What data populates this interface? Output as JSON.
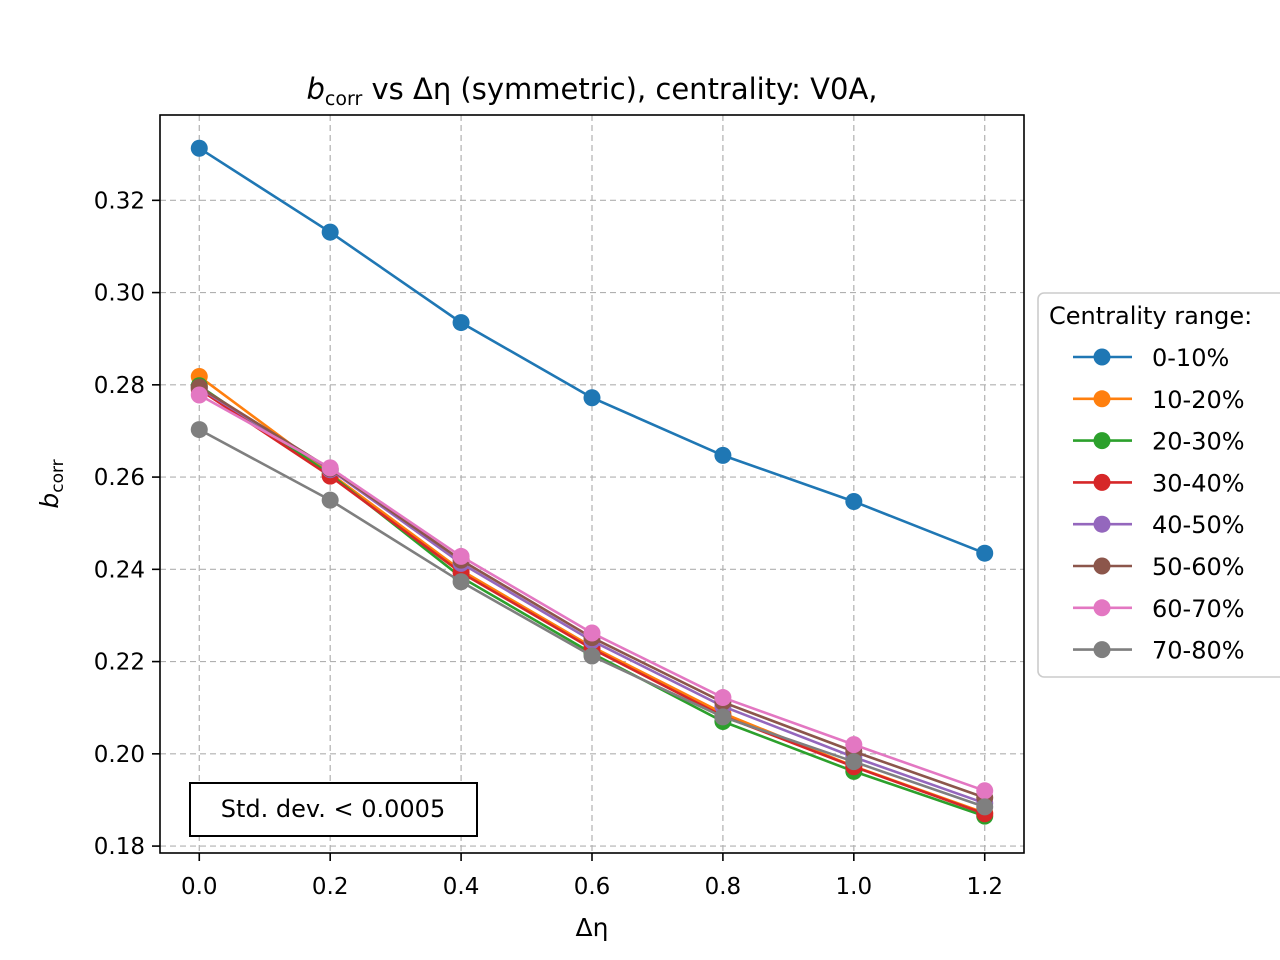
{
  "chart_data": {
    "type": "line",
    "title": {
      "symbol": "b",
      "subscript": "corr",
      "rest": " vs Δη (symmetric), centrality: V0A,"
    },
    "xlabel": "Δη",
    "ylabel": {
      "symbol": "b",
      "subscript": "corr"
    },
    "x": [
      0.0,
      0.2,
      0.4,
      0.6,
      0.8,
      1.0,
      1.2
    ],
    "xlim": [
      -0.06,
      1.26
    ],
    "ylim": [
      0.1785,
      0.3385
    ],
    "xticks": [
      "0.0",
      "0.2",
      "0.4",
      "0.6",
      "0.8",
      "1.0",
      "1.2"
    ],
    "yticks": [
      "0.18",
      "0.20",
      "0.22",
      "0.24",
      "0.26",
      "0.28",
      "0.30",
      "0.32"
    ],
    "grid": true,
    "legend": {
      "title": "Centrality range:",
      "position": "outside-right"
    },
    "annotation": "Std. dev. < 0.0005",
    "series": [
      {
        "name": "0-10%",
        "color": "#1f77b4",
        "values": [
          0.3313,
          0.3131,
          0.2935,
          0.2772,
          0.2647,
          0.2547,
          0.2435
        ]
      },
      {
        "name": "10-20%",
        "color": "#ff7f0e",
        "values": [
          0.2818,
          0.2608,
          0.2398,
          0.2232,
          0.2088,
          0.1973,
          0.1872
        ]
      },
      {
        "name": "20-30%",
        "color": "#2ca02c",
        "values": [
          0.2798,
          0.2606,
          0.2383,
          0.2218,
          0.207,
          0.1962,
          0.1865
        ]
      },
      {
        "name": "30-40%",
        "color": "#d62728",
        "values": [
          0.279,
          0.2602,
          0.2393,
          0.2228,
          0.2082,
          0.1972,
          0.187
        ]
      },
      {
        "name": "40-50%",
        "color": "#9467bd",
        "values": [
          0.2793,
          0.2616,
          0.2413,
          0.2245,
          0.2103,
          0.1993,
          0.1893
        ]
      },
      {
        "name": "50-60%",
        "color": "#8c564b",
        "values": [
          0.2795,
          0.2618,
          0.242,
          0.2252,
          0.2112,
          0.2005,
          0.1905
        ]
      },
      {
        "name": "60-70%",
        "color": "#e377c2",
        "values": [
          0.2778,
          0.262,
          0.2428,
          0.2262,
          0.2122,
          0.202,
          0.192
        ]
      },
      {
        "name": "70-80%",
        "color": "#7f7f7f",
        "values": [
          0.2703,
          0.255,
          0.2373,
          0.2212,
          0.208,
          0.1983,
          0.1885
        ]
      }
    ]
  }
}
